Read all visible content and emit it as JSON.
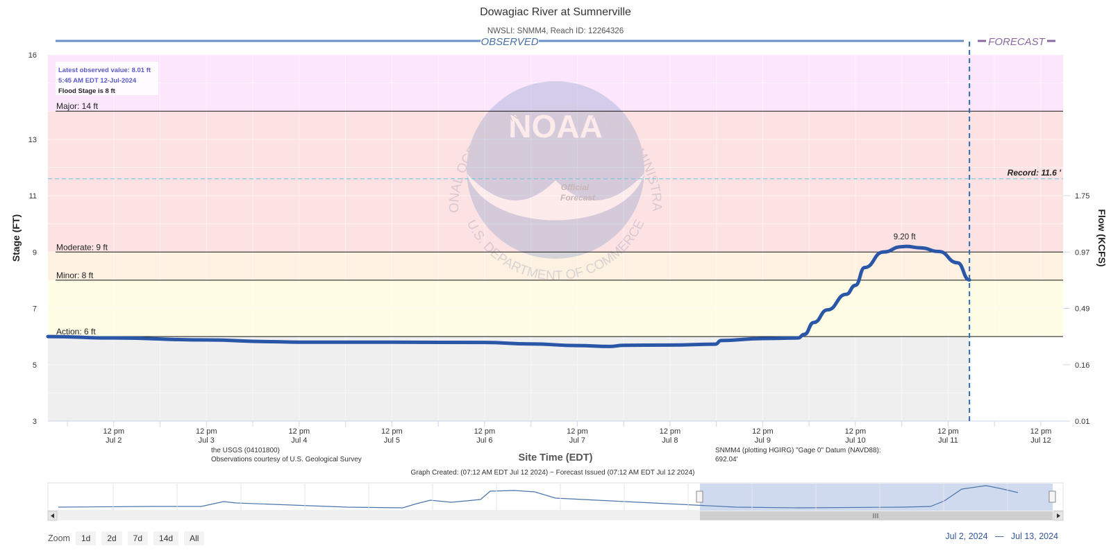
{
  "title": "Dowagiac River at Sumnerville",
  "subtitle": "NWSLI: SNMM4, Reach ID: 12264326",
  "observed_label": "OBSERVED",
  "forecast_label": "FORECAST",
  "info_box": {
    "latest": "Latest observed value: 8.01 ft",
    "time": "5:45 AM EDT 12-Jul-2024",
    "flood_stage": "Flood Stage is 8 ft"
  },
  "record_label": "Record: 11.6 '",
  "peak_label": "9.20 ft",
  "credits": {
    "usgs_line1": "the USGS (04101800)",
    "usgs_line2": "Observations courtesy of U.S. Geological Survey",
    "datum_line1": "SNMM4 (plotting HGIRG) \"Gage 0\" Datum (NAVD88):",
    "datum_line2": "692.04'",
    "created": "Graph Created: (07:12 AM EDT Jul 12 2024) ~ Forecast Issued (07:12 AM EDT Jul 12 2024)"
  },
  "zoom": {
    "label": "Zoom",
    "buttons": [
      "1d",
      "2d",
      "7d",
      "14d",
      "All"
    ]
  },
  "range": {
    "from": "Jul 2, 2024",
    "sep": "—",
    "to": "Jul 13, 2024"
  },
  "watermark": {
    "logo": "NOAA",
    "top_text": "NATIONAL OCEANIC AND ATMOSPHERIC ADMINISTRATION",
    "bottom_text": "U.S. DEPARTMENT OF COMMERCE",
    "official": "Official",
    "forecast": "Forecast"
  },
  "chart_data": {
    "type": "line",
    "xlabel": "Site Time (EDT)",
    "ylabel": "Stage (FT)",
    "y2label": "Flow (KCFS)",
    "ylim": [
      3,
      16
    ],
    "x_start_day": 1.79,
    "x_end_day": 12.74,
    "forecast_day": 11.73,
    "y_ticks": [
      3,
      5,
      7,
      9,
      11,
      13,
      16
    ],
    "y2_ticks": [
      {
        "stage": 3,
        "label": "0.01"
      },
      {
        "stage": 5,
        "label": "0.16"
      },
      {
        "stage": 7,
        "label": "0.49"
      },
      {
        "stage": 9,
        "label": "0.97"
      },
      {
        "stage": 11,
        "label": "1.75"
      }
    ],
    "x_ticks": [
      {
        "day": 2.5,
        "l1": "12 pm",
        "l2": "Jul 2"
      },
      {
        "day": 3.5,
        "l1": "12 pm",
        "l2": "Jul 3"
      },
      {
        "day": 4.5,
        "l1": "12 pm",
        "l2": "Jul 4"
      },
      {
        "day": 5.5,
        "l1": "12 pm",
        "l2": "Jul 5"
      },
      {
        "day": 6.5,
        "l1": "12 pm",
        "l2": "Jul 6"
      },
      {
        "day": 7.5,
        "l1": "12 pm",
        "l2": "Jul 7"
      },
      {
        "day": 8.5,
        "l1": "12 pm",
        "l2": "Jul 8"
      },
      {
        "day": 9.5,
        "l1": "12 pm",
        "l2": "Jul 9"
      },
      {
        "day": 10.5,
        "l1": "12 pm",
        "l2": "Jul 10"
      },
      {
        "day": 11.5,
        "l1": "12 pm",
        "l2": "Jul 11"
      },
      {
        "day": 12.5,
        "l1": "12 pm",
        "l2": "Jul 12"
      }
    ],
    "bands": [
      {
        "name": "none",
        "from": 3,
        "to": 6,
        "color": "#efefef"
      },
      {
        "name": "action",
        "from": 6,
        "to": 8,
        "color": "#fffde6"
      },
      {
        "name": "minor",
        "from": 8,
        "to": 9,
        "color": "#fdf1e2"
      },
      {
        "name": "moderate",
        "from": 9,
        "to": 14,
        "color": "#fde2e3"
      },
      {
        "name": "major",
        "from": 14,
        "to": 16,
        "color": "#fbe6fb"
      }
    ],
    "thresholds": [
      {
        "label": "Action: 6 ft",
        "value": 6
      },
      {
        "label": "Minor: 8 ft",
        "value": 8
      },
      {
        "label": "Moderate: 9 ft",
        "value": 9
      },
      {
        "label": "Major: 14 ft",
        "value": 14
      }
    ],
    "record": 11.6,
    "peak": {
      "day": 11.03,
      "value": 9.2
    },
    "series": [
      {
        "points": [
          [
            1.79,
            6.0
          ],
          [
            2.5,
            5.95
          ],
          [
            3.5,
            5.88
          ],
          [
            4.2,
            5.82
          ],
          [
            4.5,
            5.8
          ],
          [
            5.5,
            5.8
          ],
          [
            6.5,
            5.79
          ],
          [
            7.0,
            5.74
          ],
          [
            7.5,
            5.68
          ],
          [
            7.85,
            5.65
          ],
          [
            8.0,
            5.69
          ],
          [
            8.5,
            5.7
          ],
          [
            8.99,
            5.73
          ],
          [
            9.05,
            5.86
          ],
          [
            9.5,
            5.93
          ],
          [
            9.88,
            5.95
          ],
          [
            9.95,
            6.08
          ],
          [
            10.05,
            6.5
          ],
          [
            10.2,
            6.95
          ],
          [
            10.4,
            7.5
          ],
          [
            10.5,
            7.82
          ],
          [
            10.6,
            8.45
          ],
          [
            10.8,
            9.0
          ],
          [
            11.0,
            9.19
          ],
          [
            11.05,
            9.2
          ],
          [
            11.2,
            9.15
          ],
          [
            11.4,
            9.02
          ],
          [
            11.6,
            8.62
          ],
          [
            11.73,
            8.01
          ]
        ]
      }
    ]
  }
}
